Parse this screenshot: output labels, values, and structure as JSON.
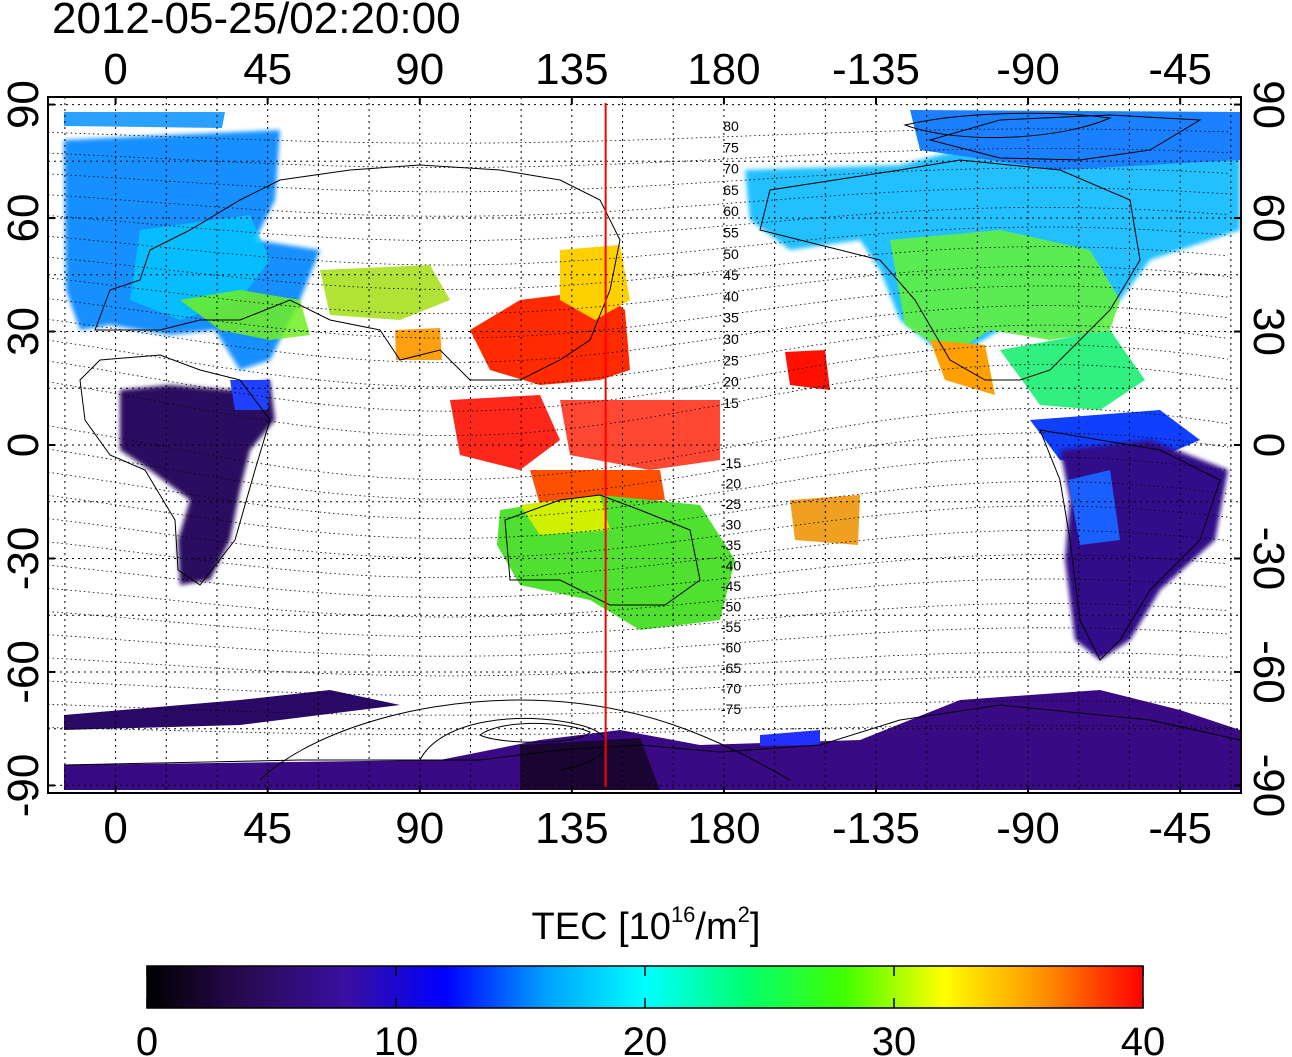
{
  "title": "2012-05-25/02:20:00",
  "map": {
    "x_ticks_top": [
      "0",
      "45",
      "90",
      "135",
      "180",
      "-135",
      "-90",
      "-45"
    ],
    "x_ticks_bottom": [
      "0",
      "45",
      "90",
      "135",
      "180",
      "-135",
      "-90",
      "-45"
    ],
    "y_ticks_left": [
      "90",
      "60",
      "30",
      "0",
      "-30",
      "-60",
      "-90"
    ],
    "y_ticks_right": [
      "90",
      "60",
      "30",
      "0",
      "-30",
      "-60",
      "-90"
    ],
    "contour_labels_north": [
      "80",
      "75",
      "70",
      "65",
      "60",
      "55",
      "50",
      "45",
      "40",
      "35",
      "30",
      "25",
      "20",
      "15"
    ],
    "contour_labels_south": [
      "-15",
      "-20",
      "-25",
      "-30",
      "-35",
      "-40",
      "-45",
      "-50",
      "-55",
      "-60",
      "-65",
      "-70",
      "-75"
    ],
    "meridian_line_lon": 145,
    "meridian_line_color": "#ff0000",
    "lon_range": [
      -20,
      333
    ],
    "lat_range": [
      -92,
      92
    ]
  },
  "colorbar": {
    "title_prefix": "TEC  [10",
    "title_exp": "16",
    "title_mid": "/m",
    "title_exp2": "2",
    "title_suffix": "]",
    "ticks": [
      "0",
      "10",
      "20",
      "30",
      "40"
    ],
    "range": [
      0,
      40
    ],
    "stops": [
      "#000000",
      "#2a0a55",
      "#3a0fa0",
      "#0000ff",
      "#00a0ff",
      "#00ffff",
      "#00ff70",
      "#40ff00",
      "#ffff00",
      "#ff9000",
      "#ff0000"
    ]
  },
  "regions": [
    {
      "name": "europe-asia-north",
      "color": "#00aaff"
    },
    {
      "name": "north-america",
      "color": "#40e070"
    },
    {
      "name": "south-america",
      "color": "#300a70"
    },
    {
      "name": "africa",
      "color": "#2a0a5a"
    },
    {
      "name": "australia",
      "color": "#50e030"
    },
    {
      "name": "east-asia",
      "color": "#ff2000"
    },
    {
      "name": "antarctica",
      "color": "#3a0a80"
    }
  ]
}
